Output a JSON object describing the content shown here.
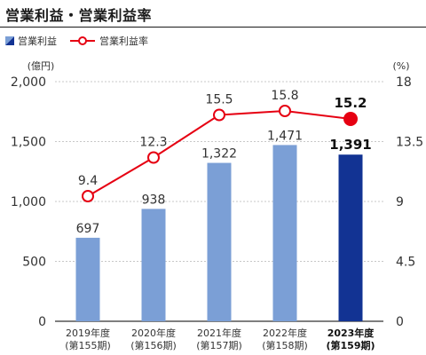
{
  "title": "営業利益・営業利益率",
  "legend": {
    "bar": "営業利益",
    "line": "営業利益率"
  },
  "colors": {
    "bar": "#7b9fd6",
    "bar_highlight": "#123393",
    "line": "#e60012",
    "grid": "#c8c8c8",
    "axis": "#333333"
  },
  "chart_data": {
    "type": "bar",
    "categories": [
      "2019年度",
      "2020年度",
      "2021年度",
      "2022年度",
      "2023年度"
    ],
    "subcategories": [
      "(第155期)",
      "(第156期)",
      "(第157期)",
      "(第158期)",
      "(第159期)"
    ],
    "highlight_index": 4,
    "left_axis": {
      "unit": "(億円)",
      "ylim": [
        0,
        2000
      ],
      "ticks": [
        0,
        500,
        1000,
        1500,
        2000
      ],
      "tick_labels": [
        "0",
        "500",
        "1,000",
        "1,500",
        "2,000"
      ]
    },
    "right_axis": {
      "unit": "(%)",
      "ylim": [
        0,
        18
      ],
      "ticks": [
        0,
        4.5,
        9,
        13.5,
        18
      ],
      "tick_labels": [
        "0",
        "4.5",
        "9",
        "13.5",
        "18"
      ]
    },
    "series": [
      {
        "name": "営業利益",
        "type": "bar",
        "axis": "left",
        "values": [
          697,
          938,
          1322,
          1471,
          1391
        ],
        "labels": [
          "697",
          "938",
          "1,322",
          "1,471",
          "1,391"
        ]
      },
      {
        "name": "営業利益率",
        "type": "line",
        "axis": "right",
        "values": [
          9.4,
          12.3,
          15.5,
          15.8,
          15.2
        ],
        "labels": [
          "9.4",
          "12.3",
          "15.5",
          "15.8",
          "15.2"
        ]
      }
    ],
    "grid": true
  }
}
